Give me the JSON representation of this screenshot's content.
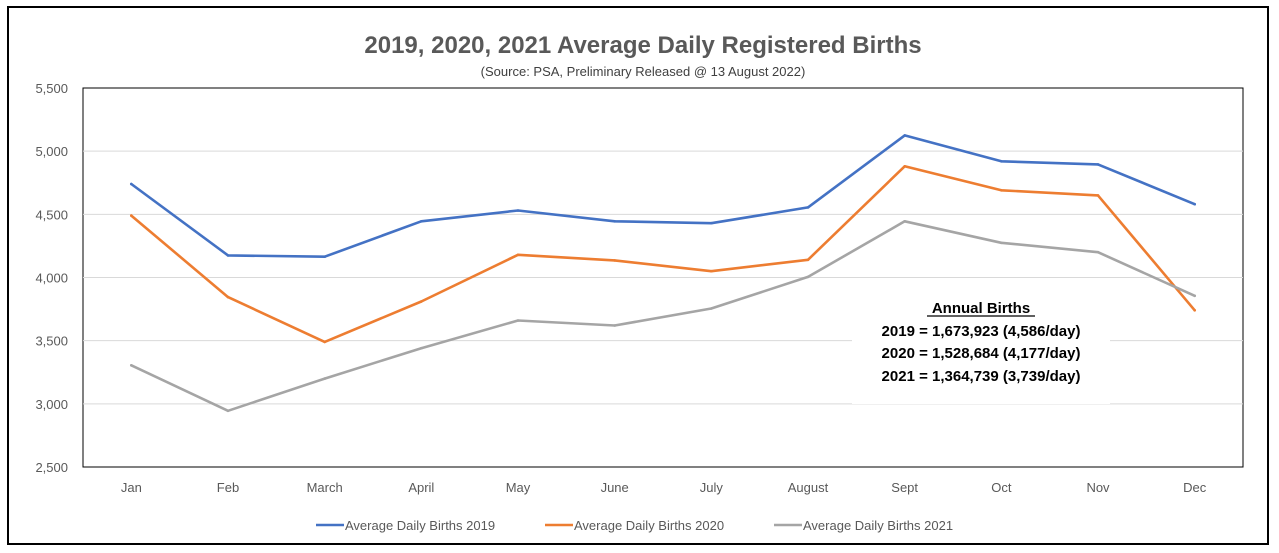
{
  "chart_data": {
    "type": "line",
    "title": "2019, 2020, 2021 Average Daily Registered Births",
    "subtitle": "(Source: PSA, Preliminary Released @ 13 August 2022)",
    "xlabel": "",
    "ylabel": "",
    "ylim": [
      2500,
      5500
    ],
    "y_ticks": [
      2500,
      3000,
      3500,
      4000,
      4500,
      5000,
      5500
    ],
    "y_tick_labels": [
      "2,500",
      "3,000",
      "3,500",
      "4,000",
      "4,500",
      "5,000",
      "5,500"
    ],
    "grid": true,
    "legend_position": "bottom",
    "categories": [
      "Jan",
      "Feb",
      "March",
      "April",
      "May",
      "June",
      "July",
      "August",
      "Sept",
      "Oct",
      "Nov",
      "Dec"
    ],
    "series": [
      {
        "name": "Average Daily Births 2019",
        "color": "#4472C4",
        "values": [
          4740,
          4175,
          4165,
          4445,
          4530,
          4445,
          4430,
          4555,
          5125,
          4920,
          4895,
          4580
        ]
      },
      {
        "name": "Average Daily Births 2020",
        "color": "#ED7D31",
        "values": [
          4490,
          3845,
          3490,
          3810,
          4180,
          4135,
          4050,
          4140,
          4880,
          4690,
          4650,
          3740
        ]
      },
      {
        "name": "Average Daily Births 2021",
        "color": "#A5A5A5",
        "values": [
          3305,
          2945,
          3200,
          3440,
          3660,
          3620,
          3755,
          4005,
          4445,
          4275,
          4200,
          3855
        ]
      }
    ],
    "annotation": {
      "heading": "Annual Births",
      "lines": [
        "2019 = 1,673,923 (4,586/day)",
        "2020 = 1,528,684 (4,177/day)",
        "2021 = 1,364,739 (3,739/day)"
      ]
    }
  }
}
